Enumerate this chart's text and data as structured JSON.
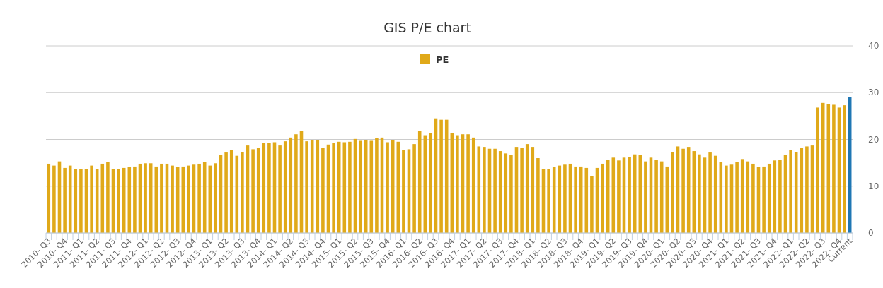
{
  "chart_data": {
    "type": "bar",
    "title": "GIS P/E chart",
    "categories": [
      "2010- Q3",
      null,
      null,
      "2010- Q4",
      null,
      null,
      "2011- Q1",
      null,
      null,
      "2011- Q2",
      null,
      null,
      "2011- Q3",
      null,
      null,
      "2011- Q4",
      null,
      null,
      "2012- Q1",
      null,
      null,
      "2012- Q2",
      null,
      null,
      "2012- Q3",
      null,
      null,
      "2012- Q4",
      null,
      null,
      "2013- Q1",
      null,
      null,
      "2013- Q2",
      null,
      null,
      "2013- Q3",
      null,
      null,
      "2013- Q4",
      null,
      null,
      "2014- Q1",
      null,
      null,
      "2014- Q2",
      null,
      null,
      "2014- Q3",
      null,
      null,
      "2014- Q4",
      null,
      null,
      "2015- Q1",
      null,
      null,
      "2015- Q2",
      null,
      null,
      "2015- Q3",
      null,
      null,
      "2015- Q4",
      null,
      null,
      "2016- Q1",
      null,
      null,
      "2016- Q2",
      null,
      null,
      "2016- Q3",
      null,
      null,
      "2016- Q4",
      null,
      null,
      "2017- Q1",
      null,
      null,
      "2017- Q2",
      null,
      null,
      "2017- Q3",
      null,
      null,
      "2017- Q4",
      null,
      null,
      "2018- Q1",
      null,
      null,
      "2018- Q2",
      null,
      null,
      "2018- Q3",
      null,
      null,
      "2018- Q4",
      null,
      null,
      "2019- Q1",
      null,
      null,
      "2019- Q2",
      null,
      null,
      "2019- Q3",
      null,
      null,
      "2019- Q4",
      null,
      null,
      "2020- Q1",
      null,
      null,
      "2020- Q2",
      null,
      null,
      "2020- Q3",
      null,
      null,
      "2020- Q4",
      null,
      null,
      "2021- Q1",
      null,
      null,
      "2021- Q2",
      null,
      null,
      "2021- Q3",
      null,
      null,
      "2021- Q4",
      null,
      null,
      "2022- Q1",
      null,
      null,
      "2022- Q2",
      null,
      null,
      "2022- Q3",
      null,
      null,
      "2022- Q4",
      null,
      "Current"
    ],
    "series": [
      {
        "name": "PE",
        "color": "#e0a919",
        "values": [
          14.8,
          14.4,
          15.3,
          13.9,
          14.4,
          13.6,
          13.7,
          13.6,
          14.4,
          13.7,
          14.8,
          15.1,
          13.6,
          13.7,
          13.9,
          14.1,
          14.2,
          14.8,
          14.9,
          14.9,
          14.2,
          14.8,
          14.8,
          14.4,
          14.1,
          14.2,
          14.4,
          14.6,
          14.8,
          15.1,
          14.4,
          14.9,
          16.7,
          17.2,
          17.7,
          16.5,
          17.3,
          18.7,
          17.9,
          18.2,
          19.2,
          19.2,
          19.4,
          18.7,
          19.6,
          20.4,
          21.1,
          21.8,
          19.6,
          19.9,
          19.9,
          18.2,
          18.9,
          19.2,
          19.5,
          19.4,
          19.5,
          20.1,
          19.7,
          19.9,
          19.7,
          20.3,
          20.4,
          19.4,
          19.9,
          19.5,
          17.7,
          17.9,
          19.0,
          21.8,
          20.9,
          21.3,
          24.5,
          24.2,
          24.2,
          21.3,
          20.9,
          21.1,
          21.1,
          20.4,
          18.5,
          18.4,
          18.0,
          18.0,
          17.5,
          17.0,
          16.7,
          18.4,
          18.2,
          19.0,
          18.4,
          16.0,
          13.7,
          13.6,
          14.1,
          14.4,
          14.6,
          14.8,
          14.2,
          14.2,
          13.9,
          12.2,
          13.9,
          14.8,
          15.6,
          16.1,
          15.5,
          16.1,
          16.3,
          16.8,
          16.7,
          15.3,
          16.1,
          15.6,
          15.3,
          14.2,
          17.3,
          18.5,
          18.0,
          18.4,
          17.5,
          16.8,
          16.1,
          17.2,
          16.5,
          15.1,
          14.4,
          14.6,
          15.1,
          15.8,
          15.3,
          14.8,
          14.1,
          14.2,
          14.8,
          15.5,
          15.6,
          16.7,
          17.7,
          17.3,
          18.2,
          18.5,
          18.7,
          26.8,
          27.8,
          27.6,
          27.4,
          26.8,
          27.3,
          29.1
        ],
        "colors": [
          "#e0a919",
          "#e0a919",
          "#e0a919",
          "#e0a919",
          "#e0a919",
          "#e0a919",
          "#e0a919",
          "#e0a919",
          "#e0a919",
          "#e0a919",
          "#e0a919",
          "#e0a919",
          "#e0a919",
          "#e0a919",
          "#e0a919",
          "#e0a919",
          "#e0a919",
          "#e0a919",
          "#e0a919",
          "#e0a919",
          "#e0a919",
          "#e0a919",
          "#e0a919",
          "#e0a919",
          "#e0a919",
          "#e0a919",
          "#e0a919",
          "#e0a919",
          "#e0a919",
          "#e0a919",
          "#e0a919",
          "#e0a919",
          "#e0a919",
          "#e0a919",
          "#e0a919",
          "#e0a919",
          "#e0a919",
          "#e0a919",
          "#e0a919",
          "#e0a919",
          "#e0a919",
          "#e0a919",
          "#e0a919",
          "#e0a919",
          "#e0a919",
          "#e0a919",
          "#e0a919",
          "#e0a919",
          "#e0a919",
          "#e0a919",
          "#e0a919",
          "#e0a919",
          "#e0a919",
          "#e0a919",
          "#e0a919",
          "#e0a919",
          "#e0a919",
          "#e0a919",
          "#e0a919",
          "#e0a919",
          "#e0a919",
          "#e0a919",
          "#e0a919",
          "#e0a919",
          "#e0a919",
          "#e0a919",
          "#e0a919",
          "#e0a919",
          "#e0a919",
          "#e0a919",
          "#e0a919",
          "#e0a919",
          "#e0a919",
          "#e0a919",
          "#e0a919",
          "#e0a919",
          "#e0a919",
          "#e0a919",
          "#e0a919",
          "#e0a919",
          "#e0a919",
          "#e0a919",
          "#e0a919",
          "#e0a919",
          "#e0a919",
          "#e0a919",
          "#e0a919",
          "#e0a919",
          "#e0a919",
          "#e0a919",
          "#e0a919",
          "#e0a919",
          "#e0a919",
          "#e0a919",
          "#e0a919",
          "#e0a919",
          "#e0a919",
          "#e0a919",
          "#e0a919",
          "#e0a919",
          "#e0a919",
          "#e0a919",
          "#e0a919",
          "#e0a919",
          "#e0a919",
          "#e0a919",
          "#e0a919",
          "#e0a919",
          "#e0a919",
          "#e0a919",
          "#e0a919",
          "#e0a919",
          "#e0a919",
          "#e0a919",
          "#e0a919",
          "#e0a919",
          "#e0a919",
          "#e0a919",
          "#e0a919",
          "#e0a919",
          "#e0a919",
          "#e0a919",
          "#e0a919",
          "#e0a919",
          "#e0a919",
          "#e0a919",
          "#e0a919",
          "#e0a919",
          "#e0a919",
          "#e0a919",
          "#e0a919",
          "#e0a919",
          "#e0a919",
          "#e0a919",
          "#e0a919",
          "#e0a919",
          "#e0a919",
          "#e0a919",
          "#e0a919",
          "#e0a919",
          "#e0a919",
          "#e0a919",
          "#e0a919",
          "#e0a919",
          "#e0a919",
          "#e0a919",
          "#e0a919",
          "#e0a919",
          "#e0a919",
          "#1f77b4"
        ]
      }
    ],
    "ylim": [
      0,
      40
    ],
    "yticks": [
      0,
      10,
      20,
      30,
      40
    ],
    "grid": "y",
    "legend": "top"
  }
}
